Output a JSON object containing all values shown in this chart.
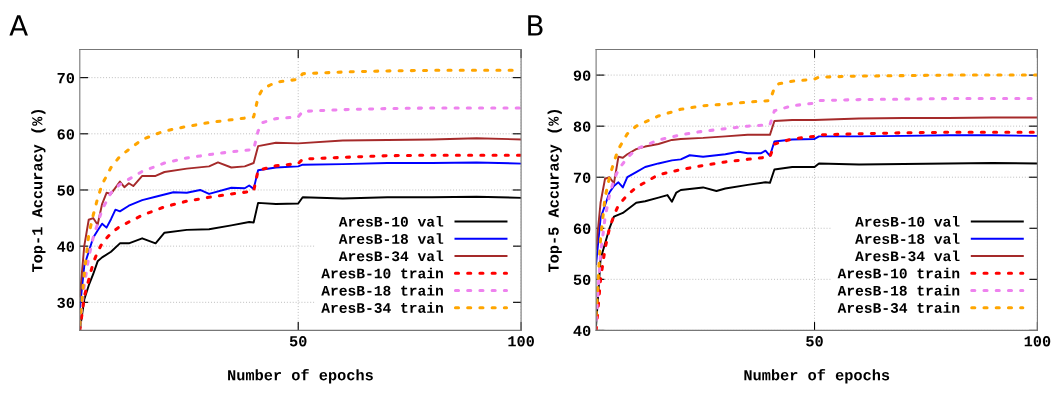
{
  "chart_data": [
    {
      "type": "line",
      "title": "A",
      "xlabel": "Number of epochs",
      "ylabel": "Top-1 Accuracy (%)",
      "xlim": [
        1,
        100
      ],
      "xticks": [
        50,
        100
      ],
      "ylim": [
        25,
        75
      ],
      "yticks": [
        30,
        40,
        50,
        60,
        70
      ],
      "grid": true,
      "legend": "bottom right",
      "marker": "none",
      "series": [
        {
          "name": "AresB-10 val",
          "color": "#000000",
          "line_style": "solid",
          "x": [
            1,
            2,
            3,
            4,
            5,
            6,
            8,
            10,
            12,
            15,
            18,
            20,
            25,
            30,
            35,
            39,
            40,
            41,
            45,
            50,
            51,
            60,
            70,
            80,
            90,
            100
          ],
          "values": [
            25,
            30.5,
            33,
            35,
            37.3,
            38,
            39,
            40.5,
            40.5,
            41.4,
            40.5,
            42.4,
            42.9,
            43,
            43.7,
            44.3,
            44.2,
            47.7,
            47.5,
            47.6,
            48.7,
            48.5,
            48.7,
            48.7,
            48.8,
            48.6
          ]
        },
        {
          "name": "AresB-18 val",
          "color": "#0000ff",
          "line_style": "solid",
          "x": [
            1,
            2,
            3,
            4,
            5,
            6,
            7,
            8,
            9,
            10,
            12,
            15,
            18,
            20,
            22,
            25,
            28,
            30,
            35,
            38,
            39,
            40,
            41,
            45,
            50,
            51,
            60,
            70,
            80,
            90,
            100
          ],
          "values": [
            28.8,
            36.5,
            39,
            41.5,
            42.8,
            44,
            43.3,
            44.8,
            46.5,
            46.2,
            47.2,
            48.2,
            48.8,
            49.2,
            49.6,
            49.5,
            50,
            49.3,
            50.4,
            50.3,
            50.8,
            50.2,
            53.5,
            54,
            54.2,
            54.5,
            54.6,
            54.8,
            54.8,
            54.9,
            54.7
          ]
        },
        {
          "name": "AresB-34 val",
          "color": "#a52a2a",
          "line_style": "solid",
          "x": [
            1,
            2,
            3,
            4,
            5,
            6,
            7,
            8,
            10,
            11,
            12,
            13,
            15,
            18,
            20,
            25,
            30,
            32,
            35,
            38,
            40,
            41,
            45,
            50,
            60,
            70,
            80,
            90,
            100
          ],
          "values": [
            31,
            40,
            44.7,
            45,
            43.8,
            47.5,
            49.5,
            49.3,
            51.5,
            50.5,
            51.2,
            50.7,
            52.5,
            52.5,
            53.2,
            53.8,
            54.2,
            54.9,
            54,
            54.2,
            54.8,
            57.8,
            58.4,
            58.3,
            58.8,
            58.9,
            59,
            59.2,
            59
          ]
        },
        {
          "name": "AresB-10 train",
          "color": "#ff0000",
          "line_style": "dotted",
          "x": [
            1,
            2,
            3,
            4,
            5,
            6,
            8,
            10,
            15,
            20,
            25,
            30,
            35,
            40,
            41,
            45,
            50,
            51,
            60,
            70,
            80,
            90,
            100
          ],
          "values": [
            25,
            31,
            34,
            37,
            39,
            40.5,
            42.3,
            43.5,
            45.5,
            47,
            48,
            48.7,
            49.3,
            49.8,
            53.5,
            54.3,
            54.7,
            55.5,
            55.8,
            56.1,
            56.2,
            56.2,
            56.2
          ]
        },
        {
          "name": "AresB-18 train",
          "color": "#ee82ee",
          "line_style": "dotted",
          "x": [
            1,
            2,
            3,
            4,
            5,
            6,
            8,
            10,
            15,
            20,
            25,
            30,
            35,
            40,
            41,
            42,
            45,
            50,
            51,
            60,
            70,
            80,
            90,
            100
          ],
          "values": [
            26,
            33,
            38,
            41.5,
            44,
            46.5,
            49.5,
            51,
            53.3,
            54.8,
            55.7,
            56.3,
            56.8,
            57.2,
            60.5,
            62,
            62.7,
            63,
            64,
            64.3,
            64.5,
            64.6,
            64.6,
            64.6
          ]
        },
        {
          "name": "AresB-34 train",
          "color": "#ffa500",
          "line_style": "dotted",
          "x": [
            1,
            2,
            3,
            4,
            5,
            6,
            8,
            10,
            15,
            20,
            25,
            30,
            35,
            40,
            41,
            42,
            45,
            50,
            51,
            60,
            70,
            80,
            90,
            100
          ],
          "values": [
            26,
            35,
            42,
            45.5,
            48.5,
            51,
            54,
            56,
            59,
            60.5,
            61.3,
            62,
            62.5,
            63,
            66.5,
            68,
            69.2,
            69.7,
            70.7,
            71,
            71.2,
            71.3,
            71.3,
            71.3
          ]
        }
      ]
    },
    {
      "type": "line",
      "title": "B",
      "xlabel": "Number of epochs",
      "ylabel": "Top-5 Accuracy (%)",
      "xlim": [
        1,
        100
      ],
      "xticks": [
        50,
        100
      ],
      "ylim": [
        40,
        95
      ],
      "yticks": [
        40,
        50,
        60,
        70,
        80,
        90
      ],
      "grid": true,
      "legend": "bottom right",
      "marker": "none",
      "series": [
        {
          "name": "AresB-10 val",
          "color": "#000000",
          "line_style": "solid",
          "x": [
            1,
            2,
            3,
            4,
            5,
            7,
            10,
            12,
            15,
            17,
            18,
            19,
            20,
            25,
            28,
            30,
            35,
            39,
            40,
            41,
            45,
            50,
            51,
            60,
            70,
            80,
            90,
            100
          ],
          "values": [
            41,
            54,
            57,
            60,
            62.3,
            63,
            65,
            65.3,
            66,
            66.5,
            65.2,
            67,
            67.5,
            68,
            67.3,
            67.8,
            68.5,
            69,
            68.9,
            71.5,
            72,
            72,
            72.7,
            72.5,
            72.6,
            72.7,
            72.8,
            72.7
          ]
        },
        {
          "name": "AresB-18 val",
          "color": "#0000ff",
          "line_style": "solid",
          "x": [
            1,
            2,
            3,
            4,
            5,
            6,
            7,
            8,
            10,
            12,
            15,
            18,
            20,
            22,
            25,
            30,
            33,
            35,
            38,
            39,
            40,
            41,
            45,
            50,
            51,
            60,
            70,
            80,
            90,
            100
          ],
          "values": [
            53,
            62,
            64.5,
            67,
            68.3,
            69,
            68,
            70,
            71,
            72,
            72.7,
            73.3,
            73.5,
            74.3,
            74,
            74.5,
            75,
            74.7,
            74.7,
            75.2,
            74.2,
            77,
            77.4,
            77.5,
            78,
            78,
            78.1,
            78.2,
            78.2,
            78.1
          ]
        },
        {
          "name": "AresB-34 val",
          "color": "#a52a2a",
          "line_style": "solid",
          "x": [
            1,
            2,
            3,
            4,
            5,
            6,
            7,
            8,
            10,
            12,
            15,
            18,
            20,
            25,
            30,
            35,
            40,
            41,
            45,
            50,
            60,
            70,
            80,
            90,
            100
          ],
          "values": [
            56,
            65,
            69.7,
            70,
            68.8,
            74,
            73.8,
            74.5,
            75.5,
            76,
            76.5,
            77.3,
            77.5,
            77.7,
            78,
            78.3,
            78.3,
            81,
            81.2,
            81.2,
            81.5,
            81.6,
            81.6,
            81.7,
            81.7
          ]
        },
        {
          "name": "AresB-10 train",
          "color": "#ff0000",
          "line_style": "dotted",
          "x": [
            1,
            2,
            3,
            4,
            5,
            6,
            8,
            10,
            15,
            20,
            25,
            30,
            35,
            40,
            41,
            45,
            50,
            51,
            60,
            70,
            80,
            90,
            100
          ],
          "values": [
            40,
            50,
            56,
            60,
            62.5,
            64.5,
            66.5,
            68,
            70.5,
            71.5,
            72.3,
            73,
            73.5,
            74,
            76.5,
            77.5,
            78,
            78.3,
            78.5,
            78.7,
            78.8,
            78.8,
            78.8
          ]
        },
        {
          "name": "AresB-18 train",
          "color": "#ee82ee",
          "line_style": "dotted",
          "x": [
            1,
            2,
            3,
            4,
            5,
            6,
            8,
            10,
            15,
            20,
            25,
            30,
            35,
            40,
            41,
            45,
            50,
            51,
            60,
            70,
            80,
            90,
            100
          ],
          "values": [
            42,
            55,
            62,
            66.5,
            69.5,
            71.5,
            73.8,
            75.5,
            77.3,
            78.3,
            79,
            79.5,
            80,
            80.3,
            83,
            84,
            84.5,
            85,
            85.2,
            85.3,
            85.4,
            85.4,
            85.4
          ]
        },
        {
          "name": "AresB-34 train",
          "color": "#ffa500",
          "line_style": "dotted",
          "x": [
            1,
            2,
            3,
            4,
            5,
            6,
            8,
            10,
            15,
            20,
            25,
            30,
            35,
            40,
            41,
            42,
            45,
            50,
            51,
            60,
            70,
            80,
            90,
            100
          ],
          "values": [
            43,
            58,
            66,
            70,
            73,
            75.5,
            78.5,
            80,
            82,
            83.3,
            84,
            84.3,
            84.7,
            85,
            87.5,
            88.3,
            88.8,
            89.2,
            89.6,
            89.8,
            89.9,
            90,
            90,
            90
          ]
        }
      ]
    }
  ]
}
